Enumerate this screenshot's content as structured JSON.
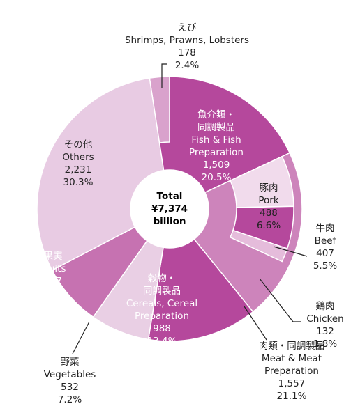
{
  "chart_data": {
    "type": "pie",
    "center_label": [
      "Total",
      "¥7,374",
      "billion"
    ],
    "slices": [
      {
        "name_ja": [
          "魚介類・",
          "同調製品"
        ],
        "name_en": [
          "Fish & Fish",
          "Preparation"
        ],
        "value": 1509,
        "value_label": "1,509",
        "percent_label": "20.5%",
        "color": "#b5489c",
        "parts": [
          {
            "name_ja": [
              "えび"
            ],
            "name_en": [
              "Shrimps, Prawns, Lobsters"
            ],
            "value": 178,
            "value_label": "178",
            "percent_label": "2.4%",
            "color": "#d9a2cc"
          }
        ]
      },
      {
        "name_ja": [
          "肉類・同調製品"
        ],
        "name_en": [
          "Meat & Meat",
          "Preparation"
        ],
        "value": 1557,
        "value_label": "1,557",
        "percent_label": "21.1%",
        "color": "#cd84bb",
        "parts": [
          {
            "name_ja": [
              "豚肉"
            ],
            "name_en": [
              "Pork"
            ],
            "value": 488,
            "value_label": "488",
            "percent_label": "6.6%",
            "color": "#f1dbec"
          },
          {
            "name_ja": [
              "牛肉"
            ],
            "name_en": [
              "Beef"
            ],
            "value": 407,
            "value_label": "407",
            "percent_label": "5.5%",
            "color": "#b5489c"
          },
          {
            "name_ja": [
              "鶏肉"
            ],
            "name_en": [
              "Chicken"
            ],
            "value": 132,
            "value_label": "132",
            "percent_label": "1.8%",
            "color": "#e5bcdb"
          }
        ]
      },
      {
        "name_ja": [
          "穀物・",
          "同調製品"
        ],
        "name_en": [
          "Cereals, Cereal",
          "Preparation"
        ],
        "value": 988,
        "value_label": "988",
        "percent_label": "13.4%",
        "color": "#b5489c"
      },
      {
        "name_ja": [
          "野菜"
        ],
        "name_en": [
          "Vegetables"
        ],
        "value": 532,
        "value_label": "532",
        "percent_label": "7.2%",
        "color": "#e9cfe4"
      },
      {
        "name_ja": [
          "果実"
        ],
        "name_en": [
          "Fruits"
        ],
        "value": 557,
        "value_label": "557",
        "percent_label": "7.6%",
        "color": "#c672b1"
      },
      {
        "name_ja": [
          "その他"
        ],
        "name_en": [
          "Others"
        ],
        "value": 2231,
        "value_label": "2,231",
        "percent_label": "30.3%",
        "color": "#e8cbe3"
      }
    ]
  }
}
